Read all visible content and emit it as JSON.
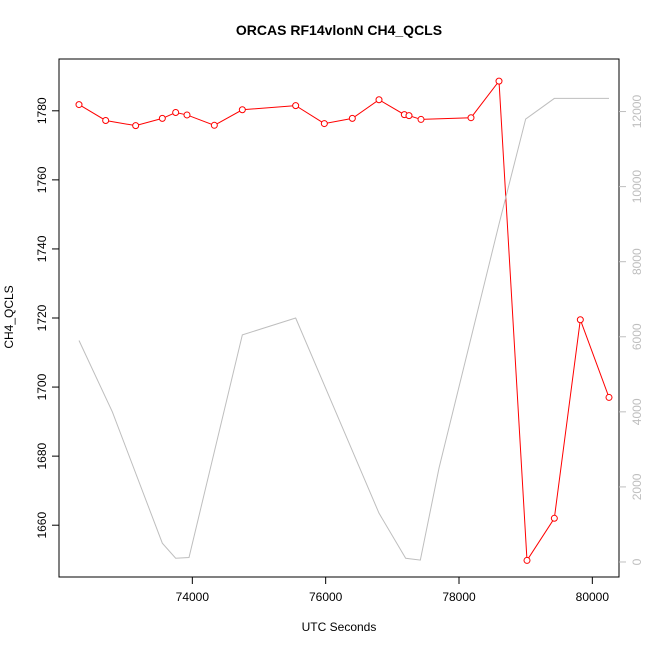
{
  "chart_data": {
    "type": "line",
    "title": "ORCAS RF14vlonN CH4_QCLS",
    "xlabel": "UTC Seconds",
    "ylabel": "CH4_QCLS",
    "y2label": "",
    "xlim": [
      72000,
      80400
    ],
    "ylim": [
      1645,
      1795
    ],
    "y2lim": [
      -400,
      13400
    ],
    "x_ticks": [
      74000,
      76000,
      78000,
      80000
    ],
    "y_ticks": [
      1660,
      1680,
      1700,
      1720,
      1740,
      1760,
      1780
    ],
    "y2_ticks": [
      0,
      2000,
      4000,
      6000,
      8000,
      10000,
      12000
    ],
    "grid": false,
    "series": [
      {
        "axis": "left",
        "color": "#ff0000",
        "marker": "open-circle",
        "x": [
          72300,
          72700,
          73150,
          73550,
          73750,
          73920,
          74330,
          74750,
          75550,
          75980,
          76400,
          76800,
          77180,
          77250,
          77430,
          78180,
          78600,
          79020,
          79430,
          79820,
          80250
        ],
        "y": [
          1781.8,
          1777.2,
          1775.7,
          1777.8,
          1779.5,
          1778.8,
          1775.8,
          1780.3,
          1781.5,
          1776.3,
          1777.8,
          1783.2,
          1778.9,
          1778.6,
          1777.5,
          1778.0,
          1788.6,
          1649.8,
          1662.0,
          1719.5,
          1697.0
        ]
      },
      {
        "axis": "right",
        "color": "#bebebe",
        "marker": "none",
        "x": [
          72300,
          72800,
          73550,
          73750,
          73950,
          74750,
          75550,
          76800,
          77200,
          77420,
          77700,
          78600,
          79000,
          79430,
          79800,
          80250
        ],
        "y": [
          5900,
          4000,
          500,
          100,
          120,
          6050,
          6500,
          1300,
          100,
          50,
          2500,
          9000,
          11800,
          12350,
          12350,
          12350
        ]
      }
    ]
  }
}
